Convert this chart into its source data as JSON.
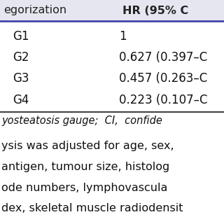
{
  "header_col1": "egorization",
  "header_col2": "HR (95% C",
  "header_bg": "#e6e6f0",
  "rows": [
    {
      "cat": "G1",
      "hr": "1"
    },
    {
      "cat": "G2",
      "hr": "0.627 (0.397–C"
    },
    {
      "cat": "G3",
      "hr": "0.457 (0.263–C"
    },
    {
      "cat": "G4",
      "hr": "0.223 (0.107–C"
    }
  ],
  "footer_line1": "yosteatosis gauge;  CI,  confide",
  "body_lines": [
    "ysis was adjusted for age, sex,",
    "antigen, tumour size, histolog",
    "ode numbers, lymphovascula",
    "dex, skeletal muscle radiodensit"
  ],
  "bg_color": "#ffffff",
  "header_text_color": "#222222",
  "body_text_color": "#111111",
  "divider_color": "#4444aa",
  "table_divider_color": "#444444",
  "font_size_header": 11.5,
  "font_size_rows": 12,
  "font_size_footer": 10.5,
  "font_size_body": 11.5
}
